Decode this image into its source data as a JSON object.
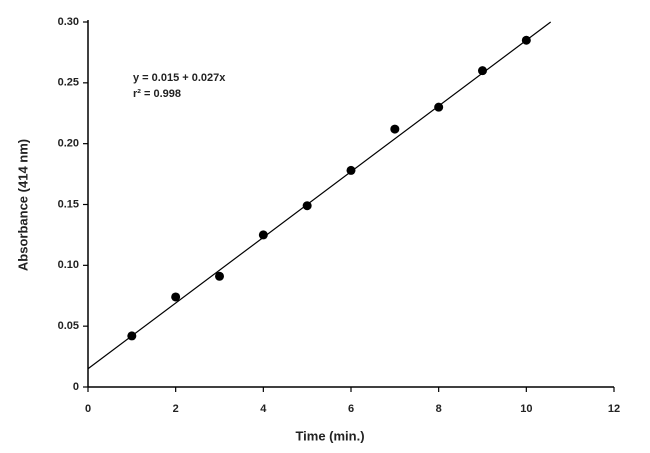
{
  "chart_data": {
    "type": "scatter",
    "x_label": "Time (min.)",
    "y_label": "Absorbance (414 nm)",
    "annotations": [
      "y = 0.015 + 0.027x",
      "r² = 0.998"
    ],
    "x": [
      1,
      2,
      3,
      4,
      5,
      6,
      7,
      8,
      9,
      10
    ],
    "values": [
      0.042,
      0.074,
      0.091,
      0.125,
      0.149,
      0.178,
      0.212,
      0.23,
      0.26,
      0.285
    ],
    "color": "#000000",
    "trendline": {
      "intercept": 0.015,
      "slope": 0.027
    },
    "xlim": [
      0,
      12
    ],
    "xticks": [
      0,
      2,
      4,
      6,
      8,
      10,
      12
    ],
    "ylim": [
      0,
      0.3
    ],
    "yticks": [
      0,
      0.05,
      {
        "value": 0.1,
        "label": "0.10"
      },
      0.15,
      {
        "value": 0.2,
        "label": "0.20"
      },
      0.25,
      {
        "value": 0.3,
        "label": "0.30"
      }
    ]
  }
}
